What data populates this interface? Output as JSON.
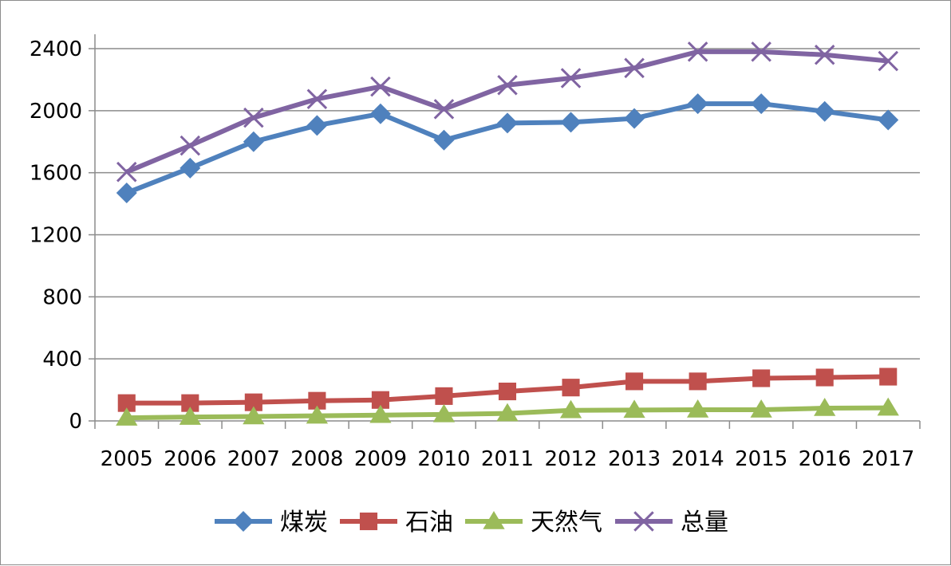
{
  "chart_data": {
    "type": "line",
    "title": "",
    "xlabel": "",
    "ylabel": "",
    "categories": [
      "2005",
      "2006",
      "2007",
      "2008",
      "2009",
      "2010",
      "2011",
      "2012",
      "2013",
      "2014",
      "2015",
      "2016",
      "2017"
    ],
    "ylim": [
      0,
      2400
    ],
    "yticks": [
      0,
      400,
      800,
      1200,
      1600,
      2000,
      2400
    ],
    "yticks_labels": [
      "0",
      "400",
      "800",
      "1200",
      "1600",
      "2000",
      "2400"
    ],
    "grid": true,
    "legend_position": "bottom",
    "series": [
      {
        "name": "煤炭",
        "color": "#4f81bd",
        "marker": "diamond",
        "values": [
          1470,
          1630,
          1800,
          1905,
          1980,
          1810,
          1920,
          1925,
          1950,
          2045,
          2045,
          1995,
          1940
        ]
      },
      {
        "name": "石油",
        "color": "#c0504d",
        "marker": "square",
        "values": [
          115,
          115,
          120,
          130,
          135,
          160,
          190,
          215,
          255,
          255,
          275,
          280,
          285
        ]
      },
      {
        "name": "天然气",
        "color": "#9bbb59",
        "marker": "triangle",
        "values": [
          20,
          25,
          28,
          33,
          37,
          42,
          48,
          68,
          70,
          72,
          72,
          82,
          84
        ]
      },
      {
        "name": "总量",
        "color": "#8064a2",
        "marker": "x",
        "values": [
          1605,
          1775,
          1955,
          2075,
          2155,
          2010,
          2165,
          2210,
          2275,
          2380,
          2380,
          2360,
          2320
        ]
      }
    ]
  }
}
